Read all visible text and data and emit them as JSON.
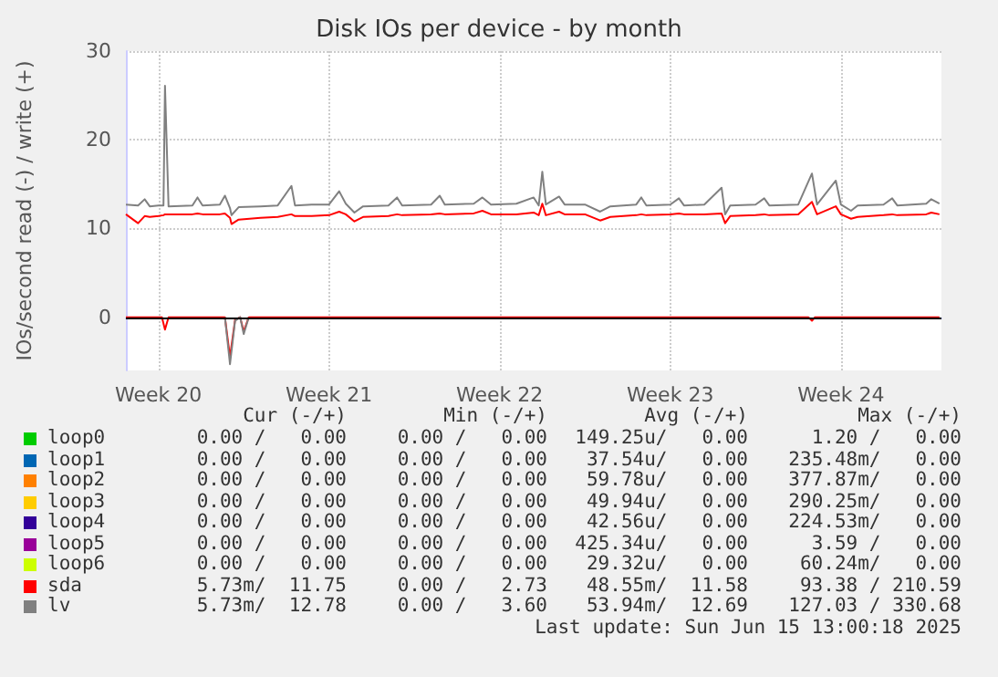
{
  "chart_data": {
    "type": "line",
    "title": "Disk IOs per device - by month",
    "ylabel": "IOs/second read (-) / write (+)",
    "xlim": [
      "2025-05-13T04:00",
      "2025-06-15T15:00"
    ],
    "xticks": [
      {
        "value": "2025-05-14T12:00",
        "label": "Week 20"
      },
      {
        "value": "2025-05-21T12:00",
        "label": "Week 21"
      },
      {
        "value": "2025-05-28T12:00",
        "label": "Week 22"
      },
      {
        "value": "2025-06-04T12:00",
        "label": "Week 23"
      },
      {
        "value": "2025-06-11T12:00",
        "label": "Week 24"
      }
    ],
    "ylim": [
      -6,
      30
    ],
    "yticks": [
      0,
      10,
      20,
      30
    ],
    "grid": true,
    "legend": "bottom",
    "marker": "none",
    "line_style": "solid",
    "series": [
      {
        "name": "loop0",
        "color": "#00cc00"
      },
      {
        "name": "loop1",
        "color": "#0066b3"
      },
      {
        "name": "loop2",
        "color": "#ff8000"
      },
      {
        "name": "loop3",
        "color": "#ffcc00"
      },
      {
        "name": "loop4",
        "color": "#330099"
      },
      {
        "name": "loop5",
        "color": "#990099"
      },
      {
        "name": "loop6",
        "color": "#ccff00"
      },
      {
        "name": "sda",
        "color": "#ff0000",
        "x": [
          "2025-05-13T04:00",
          "2025-05-13T16:00",
          "2025-05-13T22:30",
          "2025-05-14T03:30",
          "2025-05-14T12:00",
          "2025-05-14T17:00",
          "2025-05-14T18:30",
          "2025-05-14T22:00",
          "2025-05-15T21:30",
          "2025-05-16T02:30",
          "2025-05-16T07:30",
          "2025-05-17T00:30",
          "2025-05-17T05:30",
          "2025-05-17T10:30",
          "2025-05-17T12:00",
          "2025-05-17T19:00",
          "2025-05-18T16:30",
          "2025-05-19T09:30",
          "2025-05-19T23:00",
          "2025-05-20T02:30",
          "2025-05-20T19:00",
          "2025-05-21T12:00",
          "2025-05-21T22:00",
          "2025-05-22T04:30",
          "2025-05-22T13:00",
          "2025-05-22T21:30",
          "2025-05-23T22:30",
          "2025-05-24T07:00",
          "2025-05-24T12:00",
          "2025-05-25T16:30",
          "2025-05-26T01:00",
          "2025-05-26T06:00",
          "2025-05-27T10:30",
          "2025-05-27T19:00",
          "2025-05-28T03:30",
          "2025-05-29T04:30",
          "2025-05-29T21:30",
          "2025-05-30T02:30",
          "2025-05-30T06:00",
          "2025-05-30T09:30",
          "2025-05-30T22:30",
          "2025-05-31T04:00",
          "2025-06-01T00:00",
          "2025-06-01T15:00",
          "2025-06-02T01:00",
          "2025-06-03T02:30",
          "2025-06-03T07:30",
          "2025-06-03T12:30",
          "2025-06-04T12:00",
          "2025-06-04T20:30",
          "2025-06-05T01:30",
          "2025-06-05T21:30",
          "2025-06-06T14:30",
          "2025-06-06T18:00",
          "2025-06-06T23:00",
          "2025-06-08T00:00",
          "2025-06-08T08:30",
          "2025-06-08T13:30",
          "2025-06-09T18:00",
          "2025-06-10T07:30",
          "2025-06-10T12:30",
          "2025-06-11T07:00",
          "2025-06-11T12:00",
          "2025-06-11T22:00",
          "2025-06-12T04:30",
          "2025-06-13T06:00",
          "2025-06-13T14:30",
          "2025-06-13T19:30",
          "2025-06-15T00:00",
          "2025-06-15T05:00",
          "2025-06-15T13:00"
        ],
        "values": [
          11.6,
          10.6,
          11.4,
          11.3,
          11.4,
          11.5,
          11.6,
          11.6,
          11.6,
          11.7,
          11.6,
          11.6,
          11.7,
          11.2,
          10.5,
          11.0,
          11.2,
          11.3,
          11.6,
          11.4,
          11.4,
          11.5,
          11.9,
          11.6,
          10.8,
          11.3,
          11.4,
          11.6,
          11.5,
          11.6,
          11.7,
          11.6,
          11.7,
          12.0,
          11.6,
          11.6,
          11.8,
          11.5,
          12.8,
          11.5,
          11.9,
          11.6,
          11.6,
          10.9,
          11.3,
          11.5,
          11.6,
          11.5,
          11.6,
          11.7,
          11.6,
          11.6,
          11.7,
          10.6,
          11.4,
          11.5,
          11.6,
          11.5,
          11.6,
          13.0,
          11.6,
          12.5,
          11.6,
          11.1,
          11.3,
          11.5,
          11.6,
          11.5,
          11.6,
          11.8,
          11.6
        ]
      },
      {
        "name": "lv",
        "color": "#808080",
        "x": [
          "2025-05-13T04:00",
          "2025-05-13T16:00",
          "2025-05-13T22:30",
          "2025-05-14T03:30",
          "2025-05-14T12:00",
          "2025-05-14T17:00",
          "2025-05-14T18:30",
          "2025-05-14T22:00",
          "2025-05-15T21:30",
          "2025-05-16T02:30",
          "2025-05-16T07:30",
          "2025-05-17T00:30",
          "2025-05-17T05:30",
          "2025-05-17T10:30",
          "2025-05-17T12:00",
          "2025-05-17T19:00",
          "2025-05-18T16:30",
          "2025-05-19T09:30",
          "2025-05-19T23:00",
          "2025-05-20T02:30",
          "2025-05-20T19:00",
          "2025-05-21T12:00",
          "2025-05-21T22:00",
          "2025-05-22T04:30",
          "2025-05-22T13:00",
          "2025-05-22T21:30",
          "2025-05-23T22:30",
          "2025-05-24T07:00",
          "2025-05-24T12:00",
          "2025-05-25T16:30",
          "2025-05-26T01:00",
          "2025-05-26T06:00",
          "2025-05-27T10:30",
          "2025-05-27T19:00",
          "2025-05-28T03:30",
          "2025-05-29T04:30",
          "2025-05-29T21:30",
          "2025-05-30T02:30",
          "2025-05-30T06:00",
          "2025-05-30T09:30",
          "2025-05-30T22:30",
          "2025-05-31T04:00",
          "2025-06-01T00:00",
          "2025-06-01T15:00",
          "2025-06-02T01:00",
          "2025-06-03T02:30",
          "2025-06-03T07:30",
          "2025-06-03T12:30",
          "2025-06-04T12:00",
          "2025-06-04T20:30",
          "2025-06-05T01:30",
          "2025-06-05T21:30",
          "2025-06-06T14:30",
          "2025-06-06T18:00",
          "2025-06-06T23:00",
          "2025-06-08T00:00",
          "2025-06-08T08:30",
          "2025-06-08T13:30",
          "2025-06-09T18:00",
          "2025-06-10T07:30",
          "2025-06-10T12:30",
          "2025-06-11T07:00",
          "2025-06-11T12:00",
          "2025-06-11T22:00",
          "2025-06-12T04:30",
          "2025-06-13T06:00",
          "2025-06-13T14:30",
          "2025-06-13T19:30",
          "2025-06-15T00:00",
          "2025-06-15T05:00",
          "2025-06-15T13:00"
        ],
        "values": [
          12.7,
          12.6,
          13.3,
          12.5,
          12.6,
          12.6,
          26.1,
          12.5,
          12.6,
          13.5,
          12.6,
          12.7,
          13.7,
          12.3,
          11.5,
          12.4,
          12.5,
          12.6,
          14.8,
          12.6,
          12.7,
          12.7,
          14.2,
          12.8,
          11.8,
          12.5,
          12.6,
          13.5,
          12.6,
          12.7,
          13.7,
          12.7,
          12.8,
          13.5,
          12.7,
          12.8,
          13.5,
          12.6,
          16.4,
          12.7,
          13.6,
          12.7,
          12.7,
          11.9,
          12.5,
          12.7,
          13.5,
          12.6,
          12.7,
          13.4,
          12.6,
          12.7,
          14.6,
          11.6,
          12.6,
          12.7,
          13.4,
          12.6,
          12.7,
          16.2,
          12.7,
          15.4,
          12.7,
          12.0,
          12.6,
          12.7,
          13.4,
          12.6,
          12.8,
          13.3,
          12.8
        ]
      },
      {
        "color": "#ff0000",
        "x": [
          "2025-05-13T04:00",
          "2025-05-14T15:30",
          "2025-05-14T18:30",
          "2025-05-14T22:00",
          "2025-05-17T05:30",
          "2025-05-17T10:30",
          "2025-05-17T15:30",
          "2025-05-17T20:30",
          "2025-05-18T00:00",
          "2025-05-18T05:00",
          "2025-06-10T04:00",
          "2025-06-10T07:30",
          "2025-06-10T10:30",
          "2025-06-15T13:00"
        ],
        "values": [
          0,
          0,
          -1.4,
          0,
          0,
          -4.5,
          -0.3,
          0,
          -1.6,
          0,
          0,
          -0.4,
          0,
          0
        ]
      },
      {
        "color": "#808080",
        "x": [
          "2025-05-17T05:30",
          "2025-05-17T10:30",
          "2025-05-17T15:30",
          "2025-05-17T20:30",
          "2025-05-18T00:00",
          "2025-05-18T05:00"
        ],
        "values": [
          0,
          -5.3,
          -0.4,
          0,
          -1.9,
          0
        ]
      }
    ],
    "annotations": [
      "Cur (-/+)",
      "Min (-/+)",
      "Avg (-/+)",
      "Max (-/+)",
      "0.00 /   0.00",
      "0.00 /   0.00",
      "149.25u/   0.00",
      "1.20 /   0.00",
      "0.00 /   0.00",
      "0.00 /   0.00",
      "37.54u/   0.00",
      "235.48m/   0.00",
      "0.00 /   0.00",
      "0.00 /   0.00",
      "59.78u/   0.00",
      "377.87m/   0.00",
      "0.00 /   0.00",
      "0.00 /   0.00",
      "49.94u/   0.00",
      "290.25m/   0.00",
      "0.00 /   0.00",
      "0.00 /   0.00",
      "42.56u/   0.00",
      "224.53m/   0.00",
      "0.00 /   0.00",
      "0.00 /   0.00",
      "425.34u/   0.00",
      "3.59 /   0.00",
      "0.00 /   0.00",
      "0.00 /   0.00",
      "29.32u/   0.00",
      "60.24m/   0.00",
      "5.73m/  11.75",
      "0.00 /   2.73",
      "48.55m/  11.58",
      "93.38 / 210.59",
      "5.73m/  12.78",
      "0.00 /   3.60",
      "53.94m/  12.69",
      "127.03 / 330.68",
      "Last update: Sun Jun 15 13:00:18 2025"
    ]
  }
}
